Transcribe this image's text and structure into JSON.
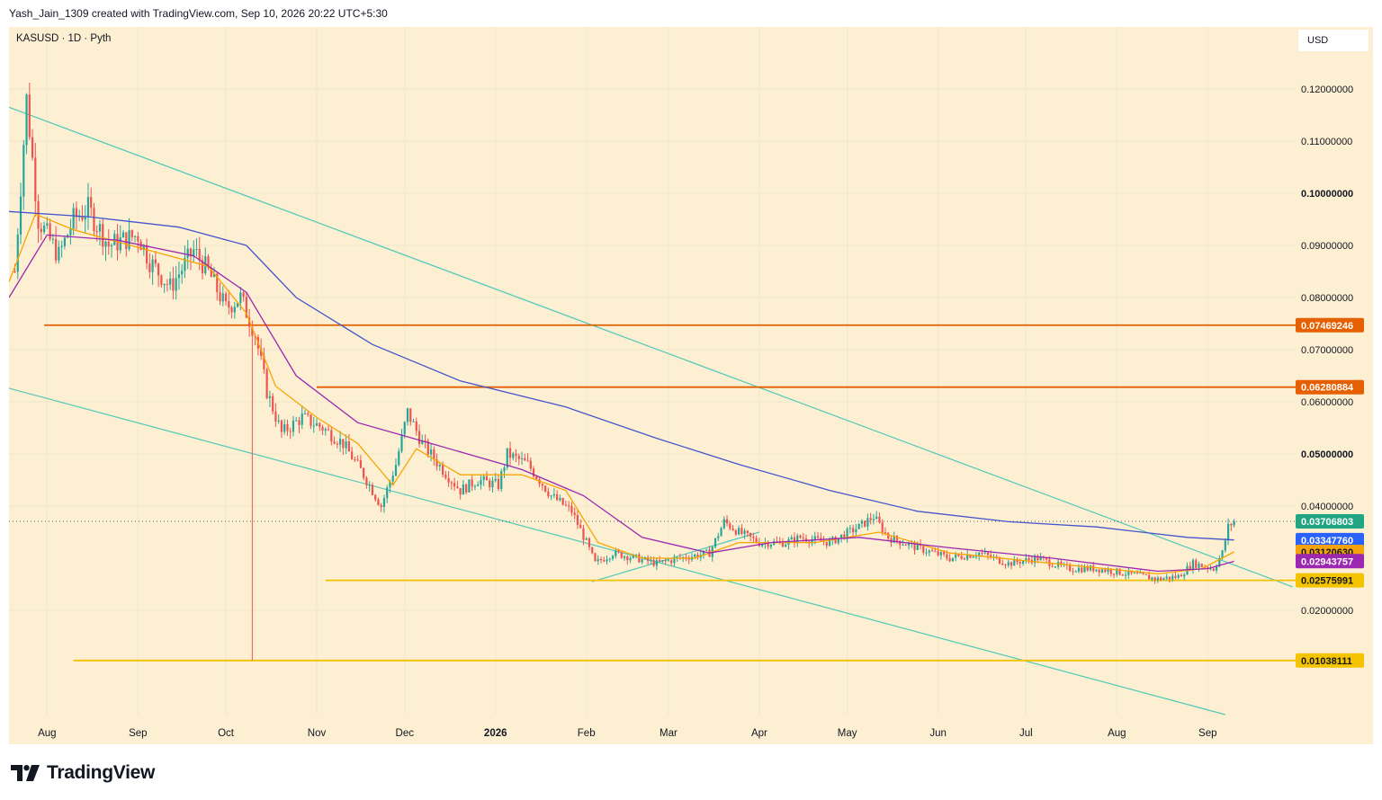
{
  "header": {
    "attribution": "Yash_Jain_1309 created with TradingView.com, Sep 10, 2026 20:22 UTC+5:30"
  },
  "chart_header": {
    "symbol_line": "KASUSD · 1D · Pyth",
    "currency": "USD"
  },
  "footer": {
    "brand": "TradingView"
  },
  "chart_data": {
    "type": "candlestick",
    "symbol": "KASUSD",
    "interval": "1D",
    "source": "Pyth",
    "currency": "USD",
    "price_range": [
      0.0,
      0.13
    ],
    "y_ticks": [
      {
        "value": 0.12,
        "label": "0.12000000",
        "bold": false
      },
      {
        "value": 0.11,
        "label": "0.11000000",
        "bold": false
      },
      {
        "value": 0.1,
        "label": "0.10000000",
        "bold": true
      },
      {
        "value": 0.09,
        "label": "0.09000000",
        "bold": false
      },
      {
        "value": 0.08,
        "label": "0.08000000",
        "bold": false
      },
      {
        "value": 0.07,
        "label": "0.07000000",
        "bold": false
      },
      {
        "value": 0.06,
        "label": "0.06000000",
        "bold": false
      },
      {
        "value": 0.05,
        "label": "0.05000000",
        "bold": true
      },
      {
        "value": 0.04,
        "label": "0.04000000",
        "bold": false
      },
      {
        "value": 0.02,
        "label": "0.02000000",
        "bold": false
      }
    ],
    "x_ticks": [
      {
        "date": "2025-08-01",
        "label": "Aug",
        "bold": false
      },
      {
        "date": "2025-09-01",
        "label": "Sep",
        "bold": false
      },
      {
        "date": "2025-10-01",
        "label": "Oct",
        "bold": false
      },
      {
        "date": "2025-11-01",
        "label": "Nov",
        "bold": false
      },
      {
        "date": "2025-12-01",
        "label": "Dec",
        "bold": false
      },
      {
        "date": "2026-01-01",
        "label": "2026",
        "bold": true
      },
      {
        "date": "2026-02-01",
        "label": "Feb",
        "bold": false
      },
      {
        "date": "2026-03-01",
        "label": "Mar",
        "bold": false
      },
      {
        "date": "2026-04-01",
        "label": "Apr",
        "bold": false
      },
      {
        "date": "2026-05-01",
        "label": "May",
        "bold": false
      },
      {
        "date": "2026-06-01",
        "label": "Jun",
        "bold": false
      },
      {
        "date": "2026-07-01",
        "label": "Jul",
        "bold": false
      },
      {
        "date": "2026-08-01",
        "label": "Aug",
        "bold": false
      },
      {
        "date": "2026-09-01",
        "label": "Sep",
        "bold": false
      }
    ],
    "colors": {
      "up": "#26a69a",
      "down": "#ef5350",
      "background": "#fcefd2",
      "grid": "#f1e6cc"
    },
    "price_path": [
      [
        "2025-07-21",
        0.085
      ],
      [
        "2025-07-25",
        0.118
      ],
      [
        "2025-07-29",
        0.095
      ],
      [
        "2025-08-05",
        0.088
      ],
      [
        "2025-08-10",
        0.095
      ],
      [
        "2025-08-15",
        0.097
      ],
      [
        "2025-08-22",
        0.09
      ],
      [
        "2025-09-01",
        0.092
      ],
      [
        "2025-09-05",
        0.087
      ],
      [
        "2025-09-12",
        0.082
      ],
      [
        "2025-09-20",
        0.089
      ],
      [
        "2025-09-25",
        0.085
      ],
      [
        "2025-10-01",
        0.078
      ],
      [
        "2025-10-06",
        0.08
      ],
      [
        "2025-10-11",
        0.073
      ],
      [
        "2025-10-15",
        0.062
      ],
      [
        "2025-10-20",
        0.054
      ],
      [
        "2025-10-27",
        0.057
      ],
      [
        "2025-11-03",
        0.055
      ],
      [
        "2025-11-10",
        0.052
      ],
      [
        "2025-11-17",
        0.046
      ],
      [
        "2025-11-23",
        0.04
      ],
      [
        "2025-11-28",
        0.048
      ],
      [
        "2025-12-02",
        0.058
      ],
      [
        "2025-12-07",
        0.052
      ],
      [
        "2025-12-14",
        0.047
      ],
      [
        "2025-12-20",
        0.043
      ],
      [
        "2025-12-26",
        0.045
      ],
      [
        "2026-01-02",
        0.044
      ],
      [
        "2026-01-05",
        0.05
      ],
      [
        "2026-01-12",
        0.048
      ],
      [
        "2026-01-20",
        0.042
      ],
      [
        "2026-01-27",
        0.039
      ],
      [
        "2026-02-01",
        0.033
      ],
      [
        "2026-02-04",
        0.029
      ],
      [
        "2026-02-10",
        0.031
      ],
      [
        "2026-02-18",
        0.03
      ],
      [
        "2026-02-25",
        0.029
      ],
      [
        "2026-03-05",
        0.03
      ],
      [
        "2026-03-15",
        0.031
      ],
      [
        "2026-03-20",
        0.037
      ],
      [
        "2026-03-25",
        0.035
      ],
      [
        "2026-04-01",
        0.033
      ],
      [
        "2026-04-10",
        0.033
      ],
      [
        "2026-04-15",
        0.034
      ],
      [
        "2026-04-25",
        0.033
      ],
      [
        "2026-05-05",
        0.036
      ],
      [
        "2026-05-10",
        0.038
      ],
      [
        "2026-05-15",
        0.034
      ],
      [
        "2026-05-25",
        0.032
      ],
      [
        "2026-06-05",
        0.03
      ],
      [
        "2026-06-15",
        0.031
      ],
      [
        "2026-06-25",
        0.029
      ],
      [
        "2026-07-05",
        0.03
      ],
      [
        "2026-07-15",
        0.028
      ],
      [
        "2026-07-25",
        0.028
      ],
      [
        "2026-08-05",
        0.027
      ],
      [
        "2026-08-15",
        0.026
      ],
      [
        "2026-08-22",
        0.0265
      ],
      [
        "2026-08-27",
        0.029
      ],
      [
        "2026-09-03",
        0.028
      ],
      [
        "2026-09-06",
        0.031
      ],
      [
        "2026-09-08",
        0.036
      ],
      [
        "2026-09-10",
        0.0371
      ]
    ],
    "wick_spike": {
      "date": "2025-10-10",
      "low": 0.01038111
    },
    "moving_averages": [
      {
        "color": "#f7a600",
        "points": [
          [
            "2025-07-19",
            0.083
          ],
          [
            "2025-07-28",
            0.096
          ],
          [
            "2025-08-10",
            0.093
          ],
          [
            "2025-09-05",
            0.089
          ],
          [
            "2025-09-25",
            0.086
          ],
          [
            "2025-10-08",
            0.077
          ],
          [
            "2025-10-18",
            0.063
          ],
          [
            "2025-11-01",
            0.057
          ],
          [
            "2025-11-15",
            0.052
          ],
          [
            "2025-11-27",
            0.044
          ],
          [
            "2025-12-05",
            0.051
          ],
          [
            "2025-12-20",
            0.046
          ],
          [
            "2026-01-10",
            0.046
          ],
          [
            "2026-01-25",
            0.043
          ],
          [
            "2026-02-05",
            0.033
          ],
          [
            "2026-02-20",
            0.03
          ],
          [
            "2026-03-10",
            0.03
          ],
          [
            "2026-03-25",
            0.033
          ],
          [
            "2026-04-20",
            0.033
          ],
          [
            "2026-05-12",
            0.035
          ],
          [
            "2026-06-05",
            0.031
          ],
          [
            "2026-07-10",
            0.029
          ],
          [
            "2026-08-15",
            0.027
          ],
          [
            "2026-08-30",
            0.028
          ],
          [
            "2026-09-10",
            0.0312
          ]
        ]
      },
      {
        "color": "#9c27b0",
        "points": [
          [
            "2025-07-19",
            0.08
          ],
          [
            "2025-08-01",
            0.092
          ],
          [
            "2025-08-25",
            0.091
          ],
          [
            "2025-09-20",
            0.088
          ],
          [
            "2025-10-08",
            0.081
          ],
          [
            "2025-10-25",
            0.065
          ],
          [
            "2025-11-15",
            0.056
          ],
          [
            "2025-12-10",
            0.052
          ],
          [
            "2026-01-10",
            0.047
          ],
          [
            "2026-01-31",
            0.042
          ],
          [
            "2026-02-20",
            0.034
          ],
          [
            "2026-03-15",
            0.031
          ],
          [
            "2026-04-05",
            0.033
          ],
          [
            "2026-05-05",
            0.034
          ],
          [
            "2026-06-05",
            0.032
          ],
          [
            "2026-07-10",
            0.03
          ],
          [
            "2026-08-15",
            0.0275
          ],
          [
            "2026-09-01",
            0.028
          ],
          [
            "2026-09-10",
            0.0294
          ]
        ]
      },
      {
        "color": "#4455cc",
        "points": [
          [
            "2025-07-19",
            0.0965
          ],
          [
            "2025-08-15",
            0.0955
          ],
          [
            "2025-09-15",
            0.0935
          ],
          [
            "2025-10-08",
            0.09
          ],
          [
            "2025-10-25",
            0.08
          ],
          [
            "2025-11-20",
            0.071
          ],
          [
            "2025-12-20",
            0.064
          ],
          [
            "2026-01-25",
            0.059
          ],
          [
            "2026-02-25",
            0.053
          ],
          [
            "2026-03-25",
            0.048
          ],
          [
            "2026-04-25",
            0.043
          ],
          [
            "2026-05-25",
            0.039
          ],
          [
            "2026-06-25",
            0.037
          ],
          [
            "2026-07-25",
            0.036
          ],
          [
            "2026-08-25",
            0.034
          ],
          [
            "2026-09-10",
            0.0335
          ]
        ]
      }
    ],
    "horizontal_levels": [
      {
        "value": 0.07469246,
        "from": "2025-07-31",
        "color": "#e06000"
      },
      {
        "value": 0.06280884,
        "from": "2025-11-01",
        "color": "#e06000"
      },
      {
        "value": 0.02575991,
        "from": "2025-11-04",
        "color": "#f2c200"
      },
      {
        "value": 0.01038111,
        "from": "2025-08-10",
        "color": "#f2c200"
      }
    ],
    "trend_lines": [
      {
        "from": [
          "2025-07-19",
          0.1165
        ],
        "to": [
          "2026-09-30",
          0.0245
        ],
        "color": "#52c8b8"
      },
      {
        "from": [
          "2025-07-19",
          0.0626
        ],
        "to": [
          "2026-09-07",
          0.0
        ],
        "color": "#52c8b8"
      },
      {
        "from": [
          "2026-02-03",
          0.0255
        ],
        "to": [
          "2026-04-01",
          0.035
        ],
        "color": "#52c8b8"
      }
    ],
    "last_price_line": {
      "value": 0.03706803,
      "color": "#333333"
    },
    "price_labels": [
      {
        "value": 0.07469246,
        "label": "0.07469246",
        "bg": "#e65f00",
        "fg": "#ffffff"
      },
      {
        "value": 0.06280884,
        "label": "0.06280884",
        "bg": "#e65f00",
        "fg": "#ffffff"
      },
      {
        "value": 0.03706803,
        "label": "0.03706803",
        "bg": "#22a582",
        "fg": "#ffffff"
      },
      {
        "value": 0.0334776,
        "label": "0.03347760",
        "bg": "#2962ff",
        "fg": "#ffffff"
      },
      {
        "value": 0.0312063,
        "label": "0.03120630",
        "bg": "#f5a20c",
        "fg": "#131722"
      },
      {
        "value": 0.02943757,
        "label": "0.02943757",
        "bg": "#9c27b0",
        "fg": "#ffffff"
      },
      {
        "value": 0.02575991,
        "label": "0.02575991",
        "bg": "#f4c400",
        "fg": "#131722"
      },
      {
        "value": 0.01038111,
        "label": "0.01038111",
        "bg": "#f4c400",
        "fg": "#131722"
      }
    ]
  }
}
